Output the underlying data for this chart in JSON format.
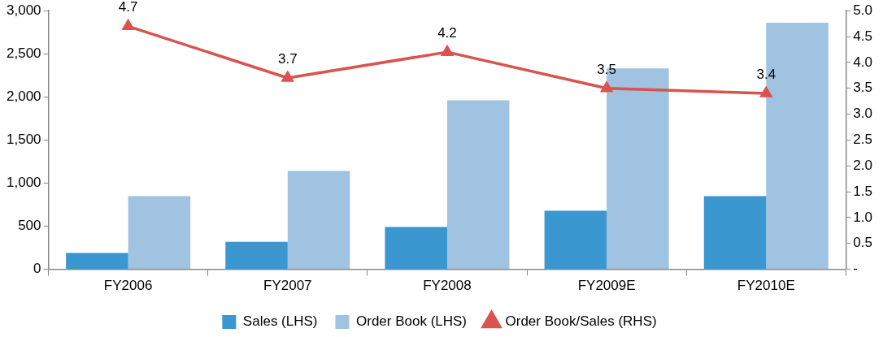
{
  "chart_data": {
    "type": "bar",
    "categories": [
      "FY2006",
      "FY2007",
      "FY2008",
      "FY2009E",
      "FY2010E"
    ],
    "series": [
      {
        "name": "Sales (LHS)",
        "type": "bar",
        "color": "#3a97cf",
        "values": [
          190,
          320,
          490,
          680,
          850
        ]
      },
      {
        "name": "Order Book (LHS)",
        "type": "bar",
        "color": "#9fc3e0",
        "values": [
          850,
          1140,
          1960,
          2330,
          2860
        ]
      },
      {
        "name": "Order Book/Sales (RHS)",
        "type": "line",
        "axis": "y2",
        "color": "#d9534f",
        "marker": "triangle",
        "values": [
          4.7,
          3.7,
          4.2,
          3.5,
          3.4
        ],
        "value_labels": [
          "4.7",
          "3.7",
          "4.2",
          "3.5",
          "3.4"
        ]
      }
    ],
    "ylim": [
      0,
      3000
    ],
    "yticks": [
      0,
      500,
      {
        "value": 1000,
        "label": "1,000"
      },
      {
        "value": 1500,
        "label": "1,500"
      },
      {
        "value": 2000,
        "label": "2,000"
      },
      {
        "value": 2500,
        "label": "2,500"
      },
      {
        "value": 3000,
        "label": "3,000"
      }
    ],
    "y2lim": [
      0,
      5
    ],
    "y2ticks": [
      {
        "value": 0,
        "label": "-"
      },
      {
        "value": 0.5,
        "label": "0.5"
      },
      {
        "value": 1,
        "label": "1.0"
      },
      {
        "value": 1.5,
        "label": "1.5"
      },
      {
        "value": 2,
        "label": "2.0"
      },
      {
        "value": 2.5,
        "label": "2.5"
      },
      {
        "value": 3,
        "label": "3.0"
      },
      {
        "value": 3.5,
        "label": "3.5"
      },
      {
        "value": 4,
        "label": "4.0"
      },
      {
        "value": 4.5,
        "label": "4.5"
      },
      {
        "value": 5,
        "label": "5.0"
      }
    ],
    "grid": false,
    "legend": "bottom"
  }
}
